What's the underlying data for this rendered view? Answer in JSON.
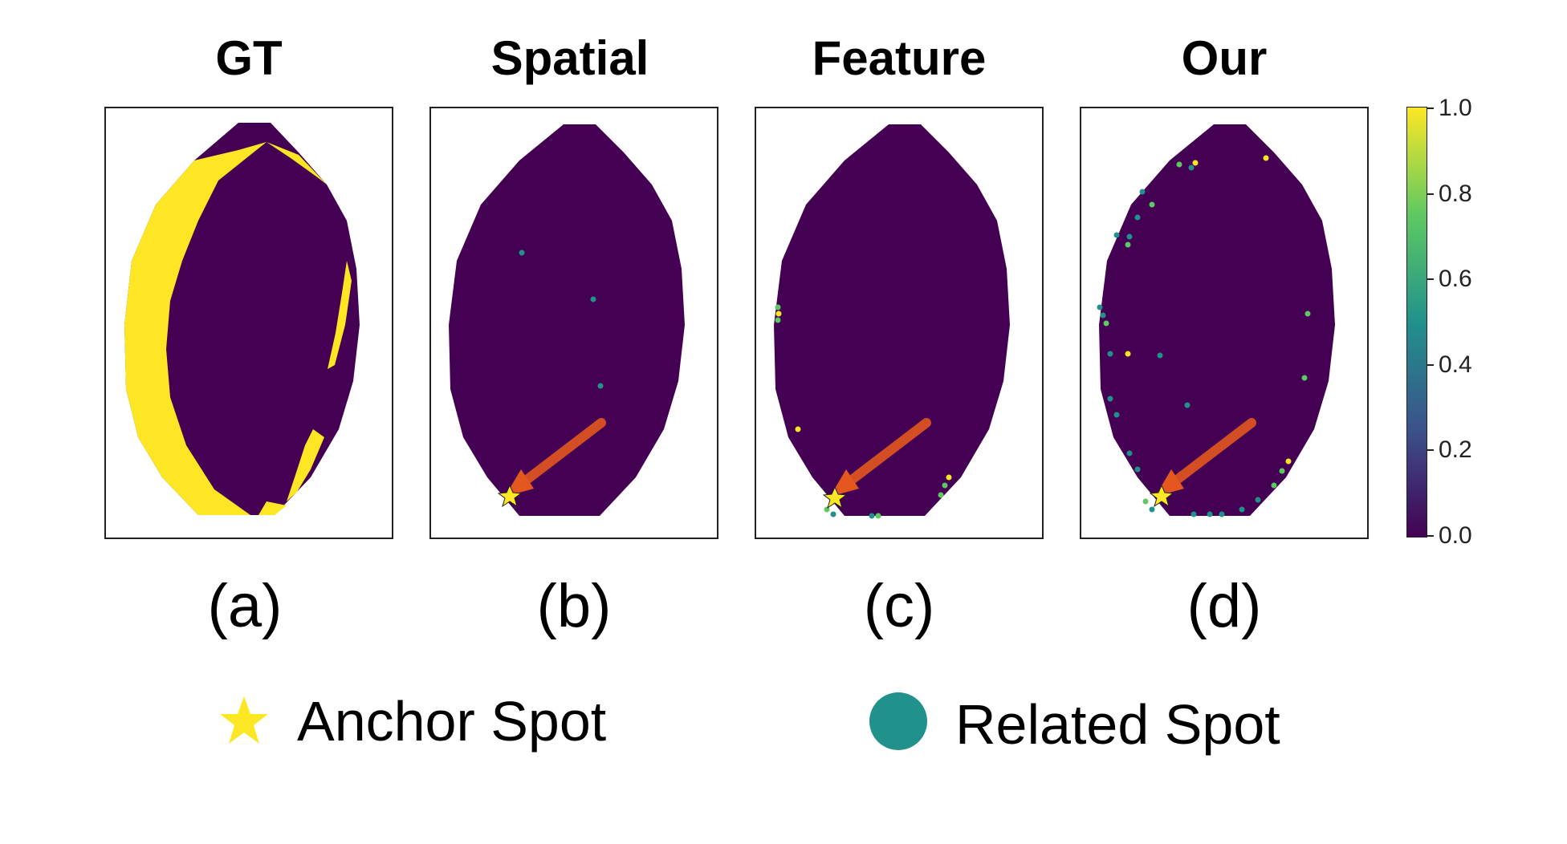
{
  "panels": [
    {
      "title": "GT",
      "letter": "(a)"
    },
    {
      "title": "Spatial",
      "letter": "(b)"
    },
    {
      "title": "Feature",
      "letter": "(c)"
    },
    {
      "title": "Our",
      "letter": "(d)"
    }
  ],
  "colorbar": {
    "ticks": [
      "1.0",
      "0.8",
      "0.6",
      "0.4",
      "0.2",
      "0.0"
    ],
    "colors": {
      "low": "#440154",
      "mid": "#21918c",
      "high": "#fde725"
    }
  },
  "legend": {
    "anchor_label": "Anchor Spot",
    "related_label": "Related Spot",
    "anchor_color": "#fde725",
    "related_color": "#21918c"
  },
  "arrow_color": "#e4571e"
}
